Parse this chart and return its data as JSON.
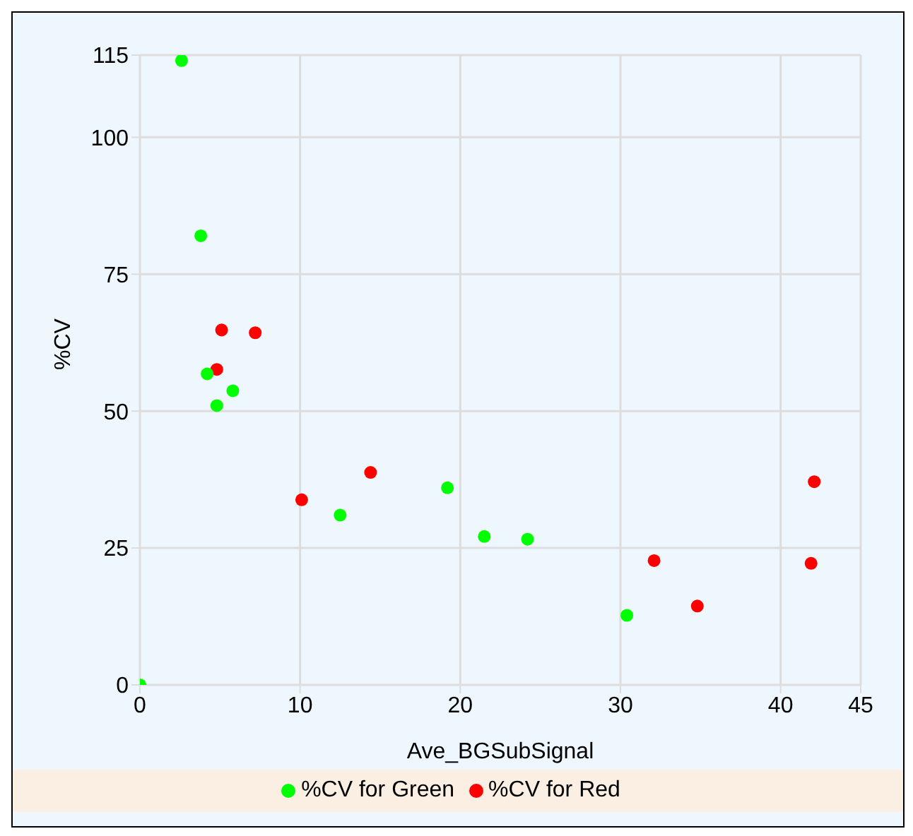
{
  "chart_data": {
    "type": "scatter",
    "xlabel": "Ave_BGSubSignal",
    "ylabel": "%CV",
    "xlim": [
      0,
      45
    ],
    "xticks": [
      0,
      10,
      20,
      30,
      40,
      45
    ],
    "ylim": [
      0,
      115
    ],
    "yticks": [
      0,
      25,
      50,
      75,
      100,
      115
    ],
    "grid": true,
    "legend": "bottom",
    "marker": "circle",
    "series": [
      {
        "name": "%CV for Red",
        "color": "#ff0000",
        "x": [
          5.1,
          7.2,
          4.8,
          10.1,
          14.4,
          32.1,
          34.8,
          42.1,
          41.9
        ],
        "values": [
          64.8,
          64.3,
          57.6,
          33.8,
          38.8,
          22.7,
          14.4,
          37.1,
          22.2
        ]
      },
      {
        "name": "%CV for Green",
        "color": "#00ff00",
        "x": [
          2.6,
          3.8,
          4.2,
          4.8,
          5.8,
          12.5,
          19.2,
          21.5,
          24.2,
          30.4,
          0
        ],
        "values": [
          114,
          82,
          56.8,
          51,
          53.7,
          31,
          36,
          27.1,
          26.6,
          12.7,
          0
        ]
      }
    ]
  }
}
